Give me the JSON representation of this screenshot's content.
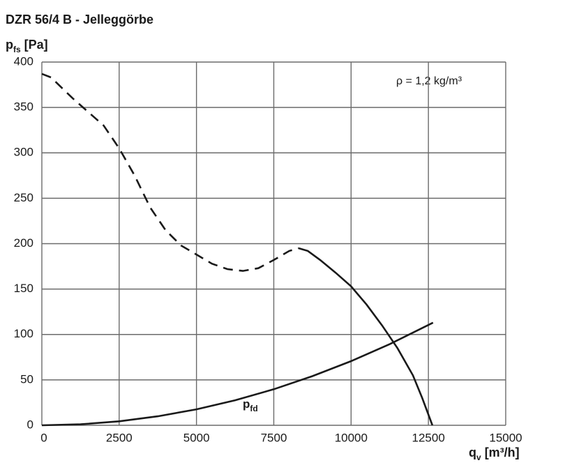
{
  "chart_data": {
    "type": "line",
    "title": "DZR 56/4 B - Jelleggörbe",
    "ylabel": {
      "main": "p",
      "sub": "fs",
      "unit": "[Pa]"
    },
    "xlabel": {
      "main": "q",
      "sub": "v",
      "unit": "[m³/h]"
    },
    "annotations": [
      {
        "text": "ρ = 1,2 kg/m³"
      }
    ],
    "curve_label": {
      "main": "p",
      "sub": "fd"
    },
    "xlim": [
      0,
      15000
    ],
    "ylim": [
      0,
      400
    ],
    "xticks": [
      0,
      2500,
      5000,
      7500,
      10000,
      12500,
      15000
    ],
    "yticks": [
      0,
      50,
      100,
      150,
      200,
      250,
      300,
      350,
      400
    ],
    "grid": true,
    "series": [
      {
        "color": "#1a1a1a",
        "dash": true,
        "x": [
          0,
          300,
          1000,
          2000,
          2500,
          3000,
          3500,
          4000,
          4500,
          5000,
          5500,
          6000,
          6500,
          7000,
          7500,
          8000,
          8300
        ],
        "values": [
          387,
          383,
          360,
          330,
          305,
          275,
          240,
          215,
          198,
          188,
          178,
          172,
          170,
          173,
          182,
          192,
          195
        ]
      },
      {
        "color": "#1a1a1a",
        "dash": false,
        "x": [
          8300,
          8600,
          9000,
          9500,
          10000,
          10500,
          11000,
          11500,
          12000,
          12300,
          12630
        ],
        "values": [
          195,
          192,
          182,
          168,
          153,
          133,
          110,
          85,
          55,
          30,
          0
        ]
      },
      {
        "color": "#1a1a1a",
        "dash": false,
        "x": [
          0,
          1250,
          2500,
          3750,
          5000,
          6250,
          7500,
          8750,
          10000,
          11250,
          12650
        ],
        "values": [
          0,
          1.1,
          4.4,
          9.9,
          17.6,
          27.6,
          39.7,
          54.1,
          70.6,
          89.4,
          113
        ]
      }
    ]
  }
}
